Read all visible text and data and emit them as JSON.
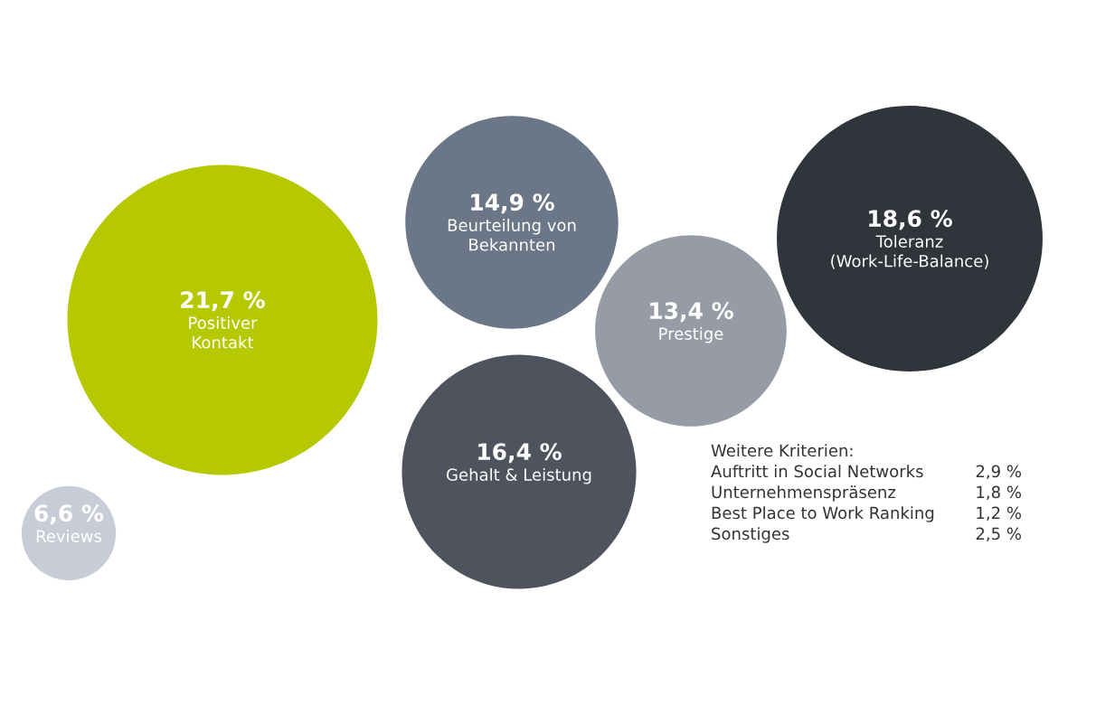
{
  "chart_data": {
    "type": "other",
    "categories": [
      "Positiver\nKontakt",
      "Reviews",
      "Beurteilung von\nBekannten",
      "Gehalt & Leistung",
      "Prestige",
      "Toleranz\n(Work-Life-Balance)"
    ],
    "values": [
      21.7,
      6.6,
      14.9,
      16.4,
      13.4,
      18.6
    ],
    "value_labels": [
      "21,7 %",
      "6,6 %",
      "14,9 %",
      "16,4 %",
      "13,4 %",
      "18,6 %"
    ],
    "colors": [
      "#b5c800",
      "#c8ccd6",
      "#6b7786",
      "#4f535e",
      "#969ba5",
      "#30343b"
    ],
    "annotations": [
      "Weitere Kriterien:",
      "Auftritt in Social Networks",
      "2,9 %",
      "Unternehmenspräsenz",
      "1,8 %",
      "Best Place to Work Ranking",
      "1,2 %",
      "Sonstiges",
      "2,5 %"
    ]
  }
}
